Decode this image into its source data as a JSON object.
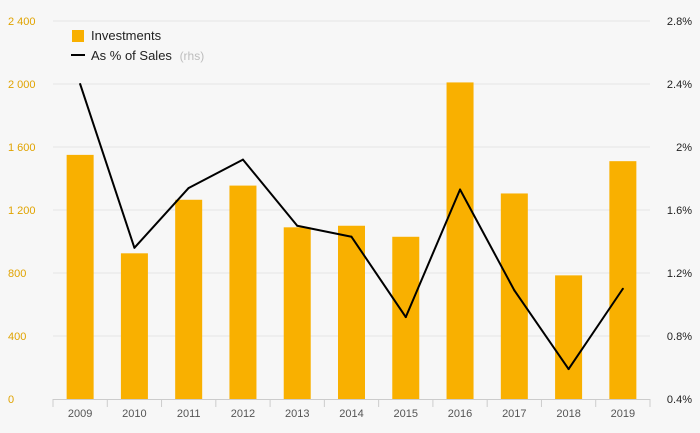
{
  "chart_data": {
    "type": "bar",
    "categories": [
      "2009",
      "2010",
      "2011",
      "2012",
      "2013",
      "2014",
      "2015",
      "2016",
      "2017",
      "2018",
      "2019"
    ],
    "series": [
      {
        "name": "Investments",
        "type": "bar",
        "axis": "left",
        "color": "#f9b000",
        "values": [
          1550,
          925,
          1265,
          1355,
          1090,
          1100,
          1030,
          2010,
          1305,
          785,
          1510
        ]
      },
      {
        "name": "As % of Sales",
        "name_suffix": "(rhs)",
        "type": "line",
        "axis": "right",
        "color": "#000000",
        "values": [
          2.4,
          1.36,
          1.74,
          1.92,
          1.5,
          1.43,
          0.92,
          1.73,
          1.09,
          0.59,
          1.1
        ]
      }
    ],
    "left_axis": {
      "ylim": [
        0,
        2400
      ],
      "ticks": [
        0,
        400,
        800,
        1200,
        1600,
        2000,
        2400
      ],
      "tick_labels": [
        "0",
        "400",
        "800",
        "1 200",
        "1 600",
        "2 000",
        "2 400"
      ],
      "color": "#e0a300"
    },
    "right_axis": {
      "ylim": [
        0.4,
        2.8
      ],
      "ticks": [
        0.4,
        0.8,
        1.2,
        1.6,
        2.0,
        2.4,
        2.8
      ],
      "tick_labels": [
        "0.4%",
        "0.8%",
        "1.2%",
        "1.6%",
        "2%",
        "2.4%",
        "2.8%"
      ],
      "color": "#222222"
    },
    "title": "",
    "xlabel": "",
    "ylabel": "",
    "grid": true,
    "legend_position": "top-left"
  }
}
